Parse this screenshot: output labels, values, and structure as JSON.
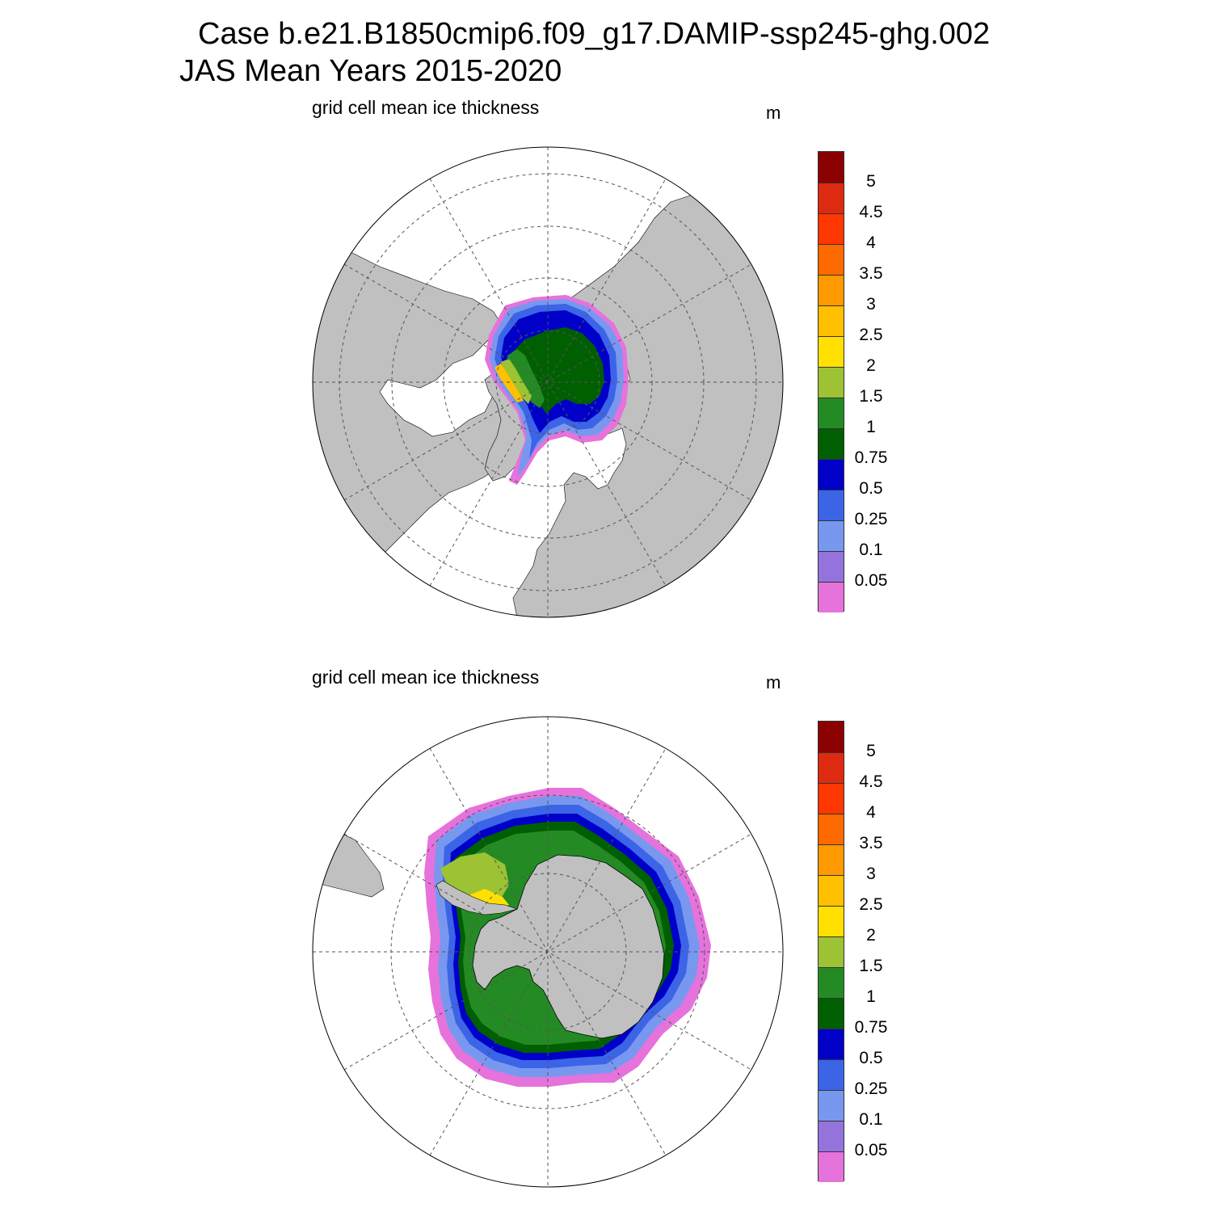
{
  "title": {
    "line1": "Case b.e21.B1850cmip6.f09_g17.DAMIP-ssp245-ghg.002",
    "line2": "JAS Mean   Years 2015-2020"
  },
  "colors": {
    "land": "#c0c0c0",
    "open_water": "#ffffff",
    "graticule": "#555555"
  },
  "colorbar": {
    "levels": [
      "5",
      "4.5",
      "4",
      "3.5",
      "3",
      "2.5",
      "2",
      "1.5",
      "1",
      "0.75",
      "0.5",
      "0.25",
      "0.1",
      "0.05"
    ],
    "colors": [
      "#8b0000",
      "#de2a10",
      "#ff3700",
      "#ff6a00",
      "#ff9900",
      "#ffc000",
      "#ffe000",
      "#9dc233",
      "#248b24",
      "#005f00",
      "#0000c8",
      "#3c64e6",
      "#7898f0",
      "#9474dc",
      "#e672dc"
    ]
  },
  "panels": [
    {
      "id": "arctic",
      "hemisphere": "north",
      "label": "grid cell mean ice thickness",
      "unit": "m"
    },
    {
      "id": "antarctic",
      "hemisphere": "south",
      "label": "grid cell mean ice thickness",
      "unit": "m"
    }
  ]
}
